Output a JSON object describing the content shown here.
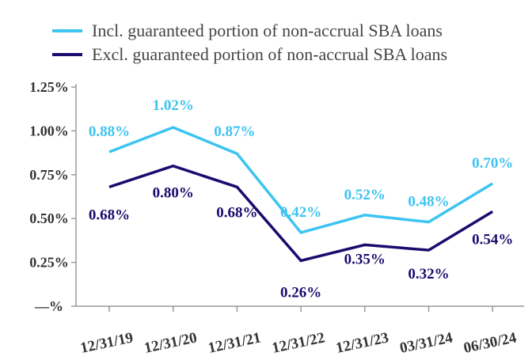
{
  "chart_data": {
    "type": "line",
    "categories": [
      "12/31/19",
      "12/31/20",
      "12/31/21",
      "12/31/22",
      "12/31/23",
      "03/31/24",
      "06/30/24"
    ],
    "series": [
      {
        "name": "Incl. guaranteed portion of non-accrual SBA loans",
        "values": [
          0.88,
          1.02,
          0.87,
          0.42,
          0.52,
          0.48,
          0.7
        ],
        "labels": [
          "0.88%",
          "1.02%",
          "0.87%",
          "0.42%",
          "0.52%",
          "0.48%",
          "0.70%"
        ],
        "color": "#3DC4F0"
      },
      {
        "name": "Excl. guaranteed portion of non-accrual SBA loans",
        "values": [
          0.68,
          0.8,
          0.68,
          0.26,
          0.35,
          0.32,
          0.54
        ],
        "labels": [
          "0.68%",
          "0.80%",
          "0.68%",
          "0.26%",
          "0.35%",
          "0.32%",
          "0.54%"
        ],
        "color": "#1E0A6E"
      }
    ],
    "y_ticks": [
      {
        "value": 0,
        "label": "—%"
      },
      {
        "value": 0.25,
        "label": "0.25%"
      },
      {
        "value": 0.5,
        "label": "0.50%"
      },
      {
        "value": 0.75,
        "label": "0.75%"
      },
      {
        "value": 1.0,
        "label": "1.00%"
      },
      {
        "value": 1.25,
        "label": "1.25%"
      }
    ],
    "ylim": [
      0,
      1.25
    ],
    "grid": false,
    "legend_position": "top-left"
  }
}
